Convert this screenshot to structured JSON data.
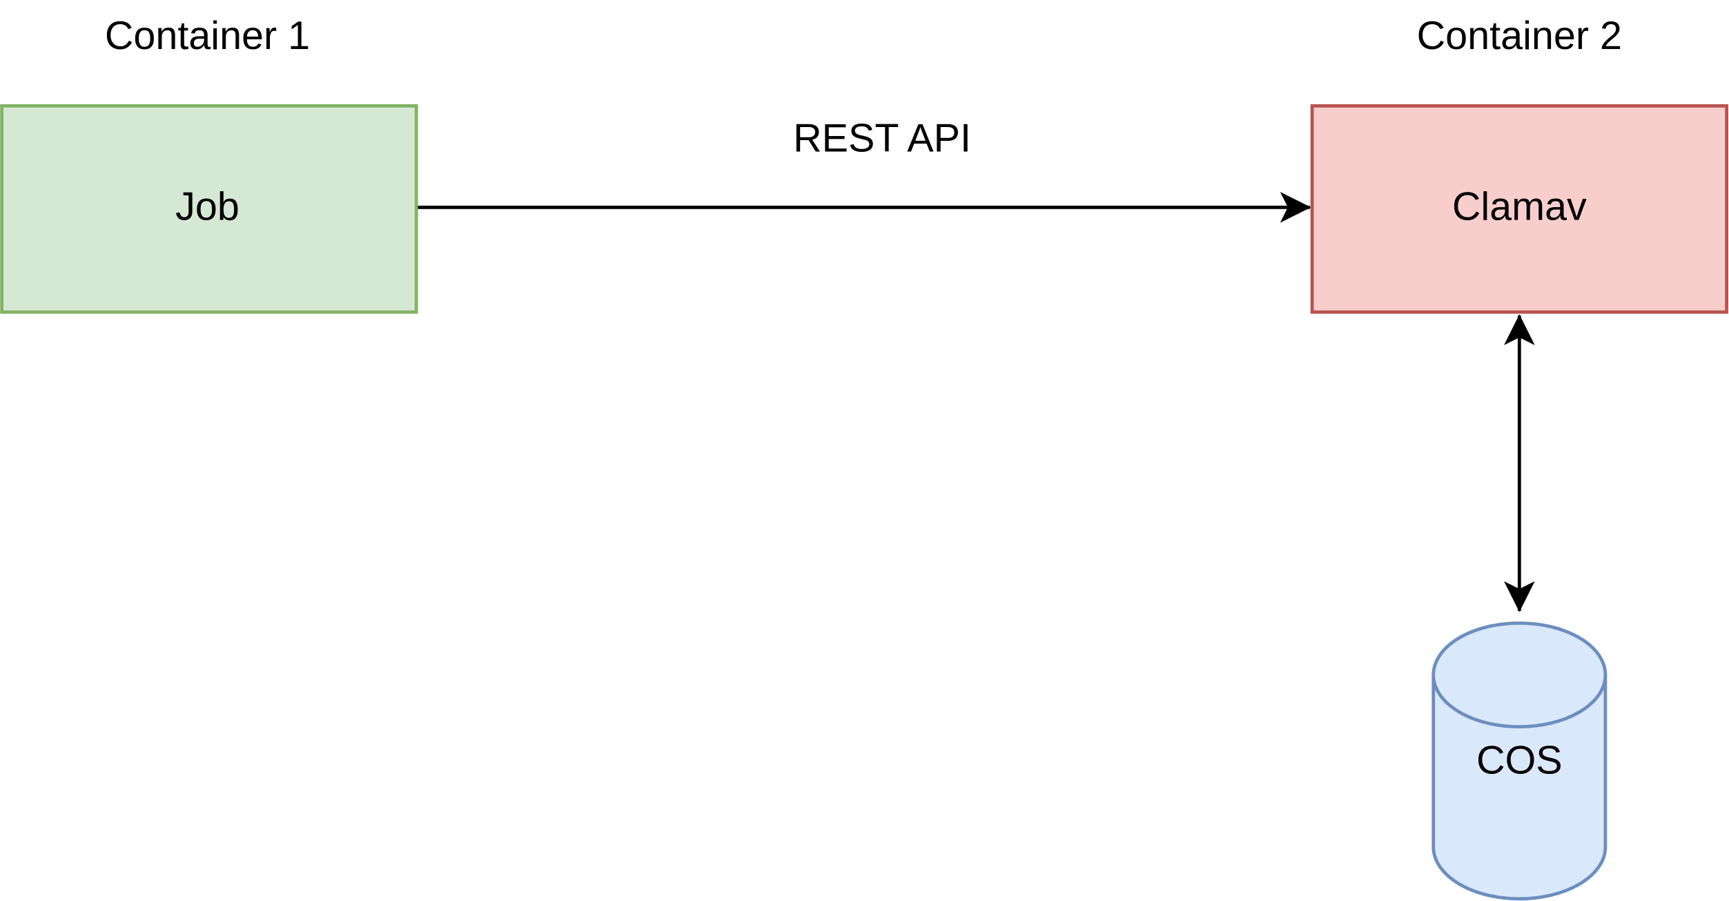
{
  "containers": [
    {
      "title": "Container 1",
      "node": "Job"
    },
    {
      "title": "Container 2",
      "node": "Clamav"
    }
  ],
  "edges": [
    {
      "label": "REST API"
    }
  ],
  "storage": {
    "label": "COS"
  }
}
